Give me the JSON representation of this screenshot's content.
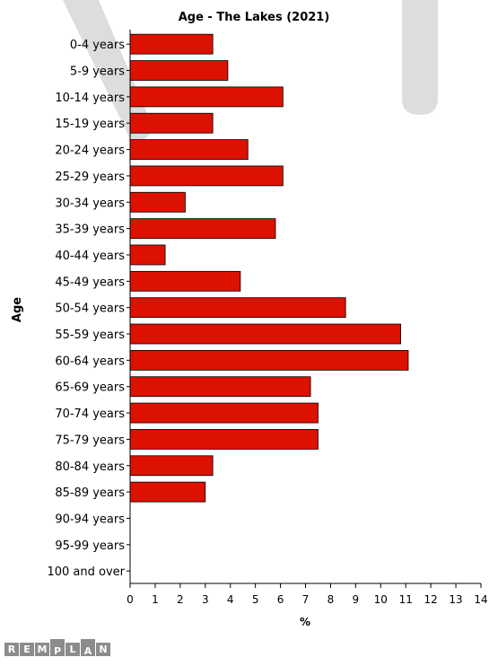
{
  "chart_data": {
    "type": "bar",
    "orientation": "horizontal",
    "title": "Age - The Lakes (2021)",
    "xlabel": "%",
    "ylabel": "Age",
    "xlim": [
      0,
      14
    ],
    "x_ticks": [
      "0",
      "1",
      "2",
      "3",
      "4",
      "5",
      "6",
      "7",
      "8",
      "9",
      "10",
      "11",
      "12",
      "13",
      "14"
    ],
    "categories": [
      "0-4 years",
      "5-9 years",
      "10-14 years",
      "15-19 years",
      "20-24 years",
      "25-29 years",
      "30-34 years",
      "35-39 years",
      "40-44 years",
      "45-49 years",
      "50-54 years",
      "55-59 years",
      "60-64 years",
      "65-69 years",
      "70-74 years",
      "75-79 years",
      "80-84 years",
      "85-89 years",
      "90-94 years",
      "95-99 years",
      "100 and over"
    ],
    "values": [
      3.3,
      3.9,
      6.1,
      3.3,
      4.7,
      6.1,
      2.2,
      5.8,
      1.4,
      4.4,
      8.6,
      10.8,
      11.1,
      7.2,
      7.5,
      7.5,
      3.3,
      3.0,
      0,
      0,
      0
    ],
    "bar_color": "#dd1100",
    "grid": false,
    "legend": "none"
  },
  "logo": {
    "letters": [
      "R",
      "E",
      "M",
      "P",
      "L",
      "A",
      "N"
    ],
    "color": "#8c8c8c"
  }
}
